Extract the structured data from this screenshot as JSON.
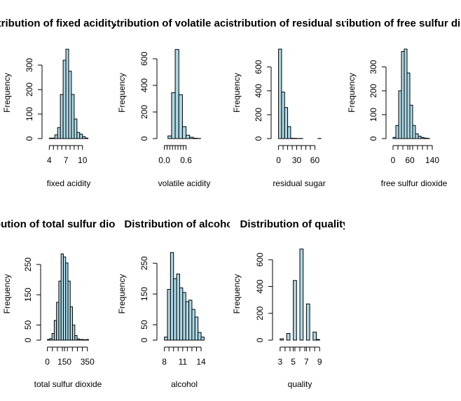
{
  "style": {
    "bar_fill": "#add8e6",
    "bar_stroke": "#000000"
  },
  "chart_data": [
    {
      "type": "bar",
      "title": "Distribution of fixed acidity",
      "xlabel": "fixed acidity",
      "ylabel": "Frequency",
      "bins": [
        [
          4,
          5
        ],
        [
          5,
          5.5
        ],
        [
          5.5,
          6
        ],
        [
          6,
          6.5
        ],
        [
          6.5,
          7
        ],
        [
          7,
          7.5
        ],
        [
          7.5,
          8
        ],
        [
          8,
          8.5
        ],
        [
          8.5,
          9
        ],
        [
          9,
          9.5
        ],
        [
          9.5,
          10
        ],
        [
          10,
          10.5
        ],
        [
          10.5,
          11
        ]
      ],
      "counts": [
        2,
        15,
        45,
        180,
        320,
        365,
        275,
        180,
        80,
        25,
        18,
        8,
        2
      ],
      "xticks": [
        4,
        7,
        10
      ],
      "xlim": [
        3.7,
        11.3
      ],
      "yticks": [
        0,
        100,
        200,
        300
      ],
      "ylim": [
        0,
        380
      ]
    },
    {
      "type": "bar",
      "title": "Distribution of volatile acidity",
      "xlabel": "volatile acidity",
      "ylabel": "Frequency",
      "bins": [
        [
          0,
          0.1
        ],
        [
          0.1,
          0.2
        ],
        [
          0.2,
          0.3
        ],
        [
          0.3,
          0.4
        ],
        [
          0.4,
          0.5
        ],
        [
          0.5,
          0.6
        ],
        [
          0.6,
          0.7
        ],
        [
          0.7,
          0.8
        ],
        [
          0.8,
          0.9
        ],
        [
          0.9,
          1.0
        ],
        [
          1.0,
          1.1
        ]
      ],
      "counts": [
        0,
        20,
        345,
        670,
        330,
        90,
        25,
        10,
        3,
        1,
        0
      ],
      "xticks": [
        0.0,
        0.6
      ],
      "xlim": [
        -0.05,
        1.15
      ],
      "yticks": [
        0,
        200,
        400,
        600
      ],
      "ylim": [
        0,
        700
      ]
    },
    {
      "type": "bar",
      "title": "Distribution of residual sugar",
      "xlabel": "residual sugar",
      "ylabel": "Frequency",
      "bins": [
        [
          0,
          5
        ],
        [
          5,
          10
        ],
        [
          10,
          15
        ],
        [
          15,
          20
        ],
        [
          20,
          25
        ],
        [
          25,
          30
        ],
        [
          30,
          35
        ],
        [
          35,
          40
        ],
        [
          40,
          45
        ],
        [
          45,
          50
        ],
        [
          50,
          55
        ],
        [
          55,
          60
        ],
        [
          60,
          65
        ],
        [
          65,
          70
        ]
      ],
      "counts": [
        750,
        390,
        260,
        100,
        3,
        2,
        1,
        1,
        0,
        0,
        0,
        0,
        0,
        1
      ],
      "xticks": [
        0,
        30,
        60
      ],
      "xlim": [
        -3,
        71
      ],
      "yticks": [
        0,
        200,
        400,
        600
      ],
      "ylim": [
        0,
        780
      ]
    },
    {
      "type": "bar",
      "title": "Distribution of free sulfur dioxide",
      "xlabel": "free sulfur dioxide",
      "ylabel": "Frequency",
      "bins": [
        [
          0,
          10
        ],
        [
          10,
          20
        ],
        [
          20,
          30
        ],
        [
          30,
          40
        ],
        [
          40,
          50
        ],
        [
          50,
          60
        ],
        [
          60,
          70
        ],
        [
          70,
          80
        ],
        [
          80,
          90
        ],
        [
          90,
          100
        ],
        [
          100,
          110
        ],
        [
          110,
          120
        ],
        [
          120,
          130
        ],
        [
          130,
          140
        ],
        [
          140,
          150
        ]
      ],
      "counts": [
        5,
        55,
        200,
        365,
        375,
        275,
        140,
        55,
        20,
        10,
        5,
        2,
        1,
        0,
        0
      ],
      "xticks": [
        0,
        60,
        140
      ],
      "xlim": [
        -5,
        155
      ],
      "yticks": [
        0,
        100,
        200,
        300
      ],
      "ylim": [
        0,
        390
      ]
    },
    {
      "type": "bar",
      "title": "Distribution of total sulfur dioxide",
      "xlabel": "total sulfur dioxide",
      "ylabel": "Frequency",
      "bins": [
        [
          0,
          20
        ],
        [
          20,
          40
        ],
        [
          40,
          60
        ],
        [
          60,
          80
        ],
        [
          80,
          100
        ],
        [
          100,
          120
        ],
        [
          120,
          140
        ],
        [
          140,
          160
        ],
        [
          160,
          180
        ],
        [
          180,
          200
        ],
        [
          200,
          220
        ],
        [
          220,
          240
        ],
        [
          240,
          260
        ],
        [
          260,
          280
        ],
        [
          280,
          300
        ],
        [
          300,
          320
        ],
        [
          320,
          340
        ],
        [
          340,
          360
        ]
      ],
      "counts": [
        2,
        5,
        22,
        65,
        125,
        195,
        285,
        275,
        255,
        195,
        110,
        50,
        15,
        4,
        2,
        2,
        1,
        2
      ],
      "xticks": [
        0,
        150,
        350
      ],
      "xlim": [
        -10,
        370
      ],
      "yticks": [
        0,
        50,
        150,
        250
      ],
      "ylim": [
        0,
        310
      ]
    },
    {
      "type": "bar",
      "title": "Distribution of alcohol",
      "xlabel": "alcohol",
      "ylabel": "Frequency",
      "bins": [
        [
          8,
          8.5
        ],
        [
          8.5,
          9
        ],
        [
          9,
          9.5
        ],
        [
          9.5,
          10
        ],
        [
          10,
          10.5
        ],
        [
          10.5,
          11
        ],
        [
          11,
          11.5
        ],
        [
          11.5,
          12
        ],
        [
          12,
          12.5
        ],
        [
          12.5,
          13
        ],
        [
          13,
          13.5
        ],
        [
          13.5,
          14
        ],
        [
          14,
          14.5
        ]
      ],
      "counts": [
        10,
        165,
        285,
        200,
        215,
        170,
        155,
        125,
        130,
        100,
        75,
        25,
        10
      ],
      "xticks": [
        8,
        11,
        14
      ],
      "xlim": [
        7.7,
        14.8
      ],
      "yticks": [
        0,
        50,
        150,
        250
      ],
      "ylim": [
        0,
        305
      ]
    },
    {
      "type": "bar",
      "title": "Distribution of quality",
      "xlabel": "quality",
      "ylabel": "Frequency",
      "bins": [
        [
          3,
          3.5
        ],
        [
          3.5,
          4
        ],
        [
          4,
          4.5
        ],
        [
          4.5,
          5
        ],
        [
          5,
          5.5
        ],
        [
          5.5,
          6
        ],
        [
          6,
          6.5
        ],
        [
          6.5,
          7
        ],
        [
          7,
          7.5
        ],
        [
          7.5,
          8
        ],
        [
          8,
          8.5
        ],
        [
          8.5,
          9
        ]
      ],
      "counts": [
        10,
        0,
        50,
        0,
        445,
        0,
        680,
        0,
        270,
        0,
        60,
        5
      ],
      "xticks": [
        3,
        5,
        7,
        9
      ],
      "xlim": [
        2.7,
        9.3
      ],
      "yticks": [
        0,
        200,
        400,
        600
      ],
      "ylim": [
        0,
        700
      ]
    }
  ]
}
